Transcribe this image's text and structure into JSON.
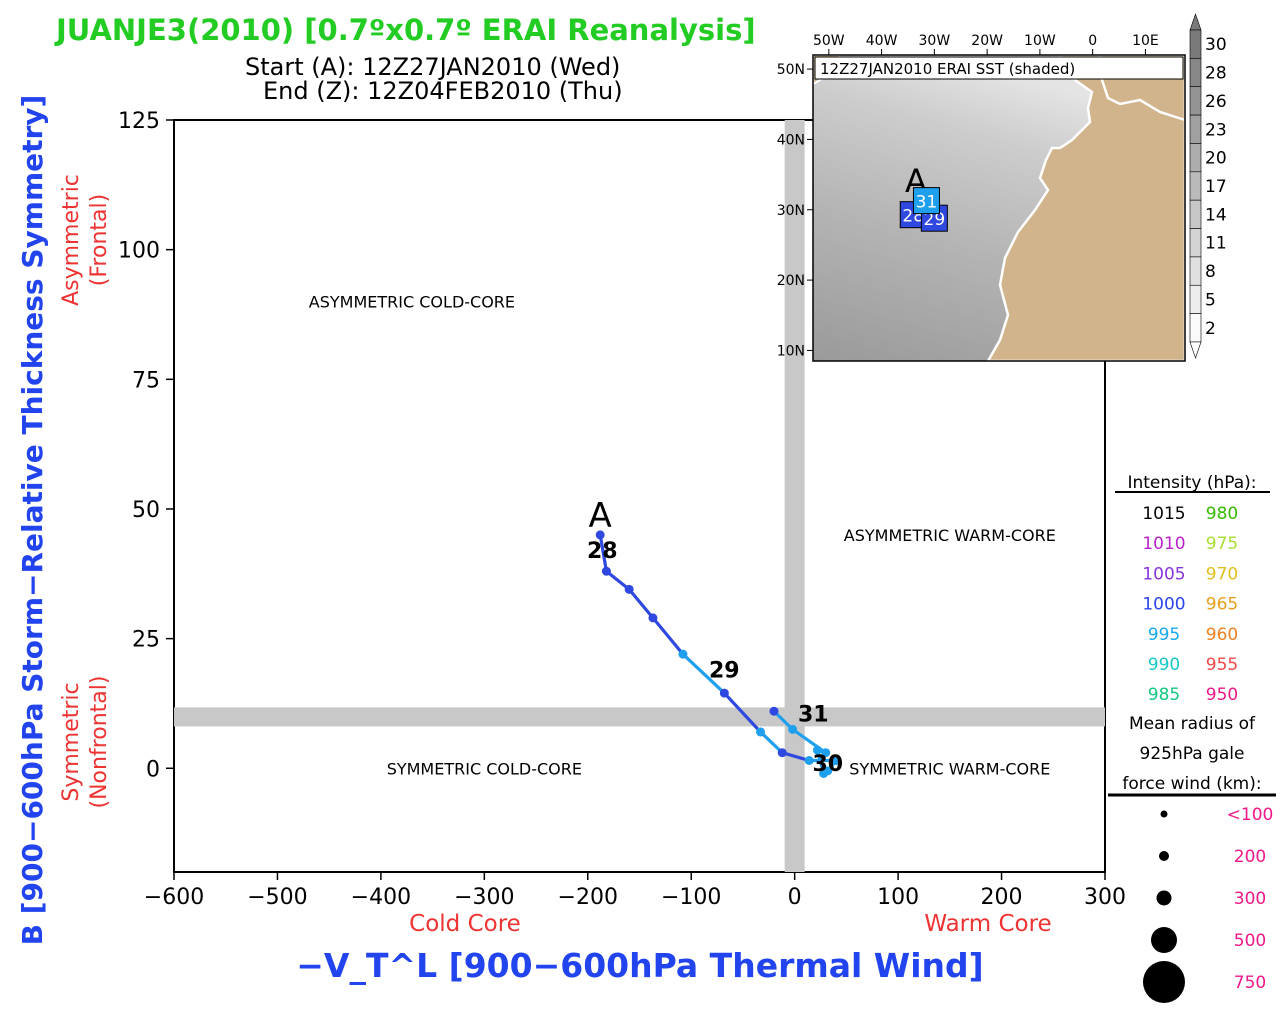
{
  "header": {
    "title": "JUANJE3(2010) [0.7ºx0.7º ERAI Reanalysis]",
    "start": "Start (A): 12Z27JAN2010 (Wed)",
    "end": "End (Z): 12Z04FEB2010 (Thu)"
  },
  "colors": {
    "title": "#22cc22",
    "label_blue": "#2244ee",
    "label_red": "#ee3333",
    "quad_bar": "#c8c8c8",
    "land": "#d2b48c"
  },
  "chart_data": [
    {
      "type": "scatter",
      "title": "",
      "xlabel": "−V_T^L [900−600hPa Thermal Wind]",
      "ylabel": "B [900−600hPa Storm−Relative Thickness Symmetry]",
      "xlim": [
        -600,
        300
      ],
      "ylim": [
        -20,
        125
      ],
      "x_ticks": [
        -600,
        -500,
        -400,
        -300,
        -200,
        -100,
        0,
        100,
        200,
        300
      ],
      "y_ticks": [
        0,
        25,
        50,
        75,
        100,
        125
      ],
      "x_tick_labels": [
        "−600",
        "−500",
        "−400",
        "−300",
        "−200",
        "−100",
        "0",
        "100",
        "200",
        "300"
      ],
      "y_tick_labels": [
        "0",
        "25",
        "50",
        "75",
        "100",
        "125"
      ],
      "x_side_labels": {
        "left": "Cold Core",
        "right": "Warm Core"
      },
      "y_side_labels": {
        "top": [
          "Asymmetric",
          "(Frontal)"
        ],
        "bottom": [
          "Symmetric",
          "(Nonfrontal)"
        ]
      },
      "quadrant_labels": [
        {
          "text": "ASYMMETRIC COLD-CORE",
          "x": -370,
          "y": 90
        },
        {
          "text": "ASYMMETRIC WARM-CORE",
          "x": 150,
          "y": 45
        },
        {
          "text": "SYMMETRIC COLD-CORE",
          "x": -300,
          "y": 0
        },
        {
          "text": "SYMMETRIC WARM-CORE",
          "x": 150,
          "y": 0
        }
      ],
      "threshold_x": 0,
      "threshold_y": 10,
      "series": [
        {
          "points": [
            {
              "x": -188,
              "y": 45,
              "c": "#2e48e0"
            },
            {
              "x": -182,
              "y": 38,
              "c": "#2e48e0"
            },
            {
              "x": -160,
              "y": 34.5,
              "c": "#2e48e0"
            },
            {
              "x": -137,
              "y": 29,
              "c": "#2e48e0"
            },
            {
              "x": -108,
              "y": 22,
              "c": "#1fa0ee"
            },
            {
              "x": -68,
              "y": 14.5,
              "c": "#2e48e0"
            },
            {
              "x": -33,
              "y": 7,
              "c": "#1fa0ee"
            },
            {
              "x": -12,
              "y": 3,
              "c": "#2e48e0"
            },
            {
              "x": 14,
              "y": 1.5,
              "c": "#1fa0ee"
            },
            {
              "x": 40,
              "y": 1.5,
              "c": "#1fa0ee"
            },
            {
              "x": 32,
              "y": -0.5,
              "c": "#1fa0ee"
            },
            {
              "x": 28,
              "y": -1,
              "c": "#1fa0ee"
            },
            {
              "x": 22,
              "y": 3.5,
              "c": "#1fa0ee"
            },
            {
              "x": 30,
              "y": 3,
              "c": "#1fa0ee"
            },
            {
              "x": -2,
              "y": 7.5,
              "c": "#1fa0ee"
            },
            {
              "x": -20,
              "y": 11,
              "c": "#2e48e0"
            }
          ]
        }
      ],
      "annotations": [
        {
          "text": "A",
          "x": -188,
          "y": 46.5,
          "size": 34
        },
        {
          "text": "28",
          "x": -186,
          "y": 40.5,
          "size": 22
        },
        {
          "text": "29",
          "x": -68,
          "y": 17.5,
          "size": 22
        },
        {
          "text": "31",
          "x": 18,
          "y": 9,
          "size": 22
        },
        {
          "text": "30",
          "x": 32,
          "y": -0.5,
          "size": 22
        }
      ]
    },
    {
      "type": "map",
      "title": "12Z27JAN2010 ERAI SST (shaded)",
      "lon_labels": [
        "50W",
        "40W",
        "30W",
        "20W",
        "10W",
        "0",
        "10E"
      ],
      "lon_values": [
        -50,
        -40,
        -30,
        -20,
        -10,
        0,
        10
      ],
      "lat_labels": [
        "50N",
        "40N",
        "30N",
        "20N",
        "10N"
      ],
      "lat_values": [
        50,
        40,
        30,
        20,
        10
      ],
      "xlim": [
        -53,
        17.5
      ],
      "ylim": [
        8.5,
        52
      ],
      "markers": [
        {
          "label": "28",
          "lon": -34,
          "lat": 29.3,
          "c": "#2e48e0"
        },
        {
          "label": "29",
          "lon": -30,
          "lat": 28.8,
          "c": "#2e48e0"
        },
        {
          "label": "31",
          "lon": -31.5,
          "lat": 31.3,
          "c": "#1fa0ee"
        }
      ],
      "start_letter": {
        "text": "A",
        "lon": -33.5,
        "lat": 32.5
      },
      "colorbar": {
        "labels": [
          "30",
          "28",
          "26",
          "23",
          "20",
          "17",
          "14",
          "11",
          "8",
          "5",
          "2"
        ]
      }
    }
  ],
  "legend": {
    "intensity_title": "Intensity (hPa):",
    "intensity": [
      {
        "label": "1015",
        "color": "#000000"
      },
      {
        "label": "980",
        "color": "#33bb00"
      },
      {
        "label": "1010",
        "color": "#bb22cc"
      },
      {
        "label": "975",
        "color": "#aadd33"
      },
      {
        "label": "1005",
        "color": "#8833dd"
      },
      {
        "label": "970",
        "color": "#e0c020"
      },
      {
        "label": "1000",
        "color": "#2a44ee"
      },
      {
        "label": "965",
        "color": "#e8a020"
      },
      {
        "label": "995",
        "color": "#18a8f0"
      },
      {
        "label": "960",
        "color": "#f08020"
      },
      {
        "label": "990",
        "color": "#18c8c8"
      },
      {
        "label": "955",
        "color": "#f04848"
      },
      {
        "label": "985",
        "color": "#10c880"
      },
      {
        "label": "950",
        "color": "#ee1888"
      }
    ],
    "radius_title": [
      "Mean radius of",
      "925hPa gale",
      "force wind (km):"
    ],
    "radius_color": "#ee1888",
    "radius": [
      {
        "label": "<100",
        "r": 3.5
      },
      {
        "label": "200",
        "r": 5
      },
      {
        "label": "300",
        "r": 7.5
      },
      {
        "label": "500",
        "r": 13
      },
      {
        "label": "750",
        "r": 21
      }
    ]
  }
}
